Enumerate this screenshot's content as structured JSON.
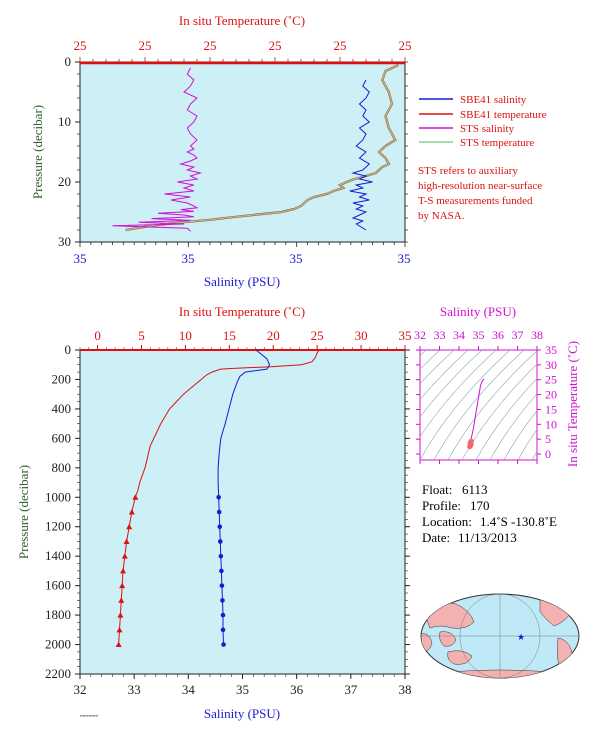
{
  "colors": {
    "plot_bg": "#cdeff6",
    "red": "#dd1111",
    "blue": "#1a1ad0",
    "magenta": "#d010d0",
    "green": "#8bd08b",
    "olive_green": "#2f5f2f",
    "dark": "#222222",
    "map_land": "#f3b1b1",
    "map_ocean": "#bfe9f7"
  },
  "chart_data": [
    {
      "id": "top",
      "type": "line",
      "top_axis_title": "In situ Temperature (˚C)",
      "top_tick_labels": [
        "25",
        "25",
        "25",
        "25",
        "25",
        "25"
      ],
      "bottom_axis_title": "Salinity (PSU)",
      "bottom_tick_labels": [
        "35",
        "35",
        "35",
        "35"
      ],
      "y_axis_title": "Pressure (decibar)",
      "y_ticks": [
        0,
        10,
        20,
        30
      ],
      "ylim": [
        0,
        30
      ],
      "legend": [
        {
          "name": "SBE41 salinity",
          "color": "#1a1ad0"
        },
        {
          "name": "SBE41 temperature",
          "color": "#dd1111"
        },
        {
          "name": "STS salinity",
          "color": "#d010d0"
        },
        {
          "name": "STS temperature",
          "color": "#8bd08b"
        }
      ],
      "note": [
        "STS refers to auxiliary",
        "high-resolution near-surface",
        "T-S measurements funded",
        "by NASA."
      ],
      "series": [
        {
          "key": "sts_salinity",
          "color": "#d010d0",
          "x_unit": "frac",
          "x": [
            0.34,
            0.33,
            0.35,
            0.34,
            0.32,
            0.36,
            0.34,
            0.33,
            0.36,
            0.35,
            0.33,
            0.34,
            0.36,
            0.34,
            0.35,
            0.33,
            0.35,
            0.36,
            0.34,
            0.31,
            0.35,
            0.33,
            0.37,
            0.34,
            0.36,
            0.3,
            0.35,
            0.32,
            0.35,
            0.26,
            0.34,
            0.28,
            0.33,
            0.35,
            0.36,
            0.31,
            0.35,
            0.24,
            0.32,
            0.35,
            0.22,
            0.34,
            0.18,
            0.32,
            0.1,
            0.33,
            0.34
          ],
          "y": [
            1,
            2,
            3,
            4,
            5,
            6,
            7,
            8,
            9,
            10,
            11,
            12,
            13,
            14,
            14.5,
            15,
            15.5,
            16,
            16.5,
            17,
            17.5,
            18,
            18.5,
            19,
            19.5,
            20,
            20.5,
            21,
            21.5,
            22,
            22.5,
            23,
            23.5,
            24,
            24.3,
            24.6,
            24.9,
            25.2,
            25.5,
            25.8,
            26.1,
            26.4,
            26.7,
            27,
            27.3,
            27.7,
            28.2
          ]
        },
        {
          "key": "sts_temperature",
          "color": "#8bd08b",
          "x_unit": "frac",
          "x": [
            0.98,
            0.94,
            0.93,
            0.95,
            0.96,
            0.94,
            0.95,
            0.97,
            0.94,
            0.92,
            0.94,
            0.95,
            0.93,
            0.92,
            0.91,
            0.88,
            0.86,
            0.84,
            0.82,
            0.8,
            0.81,
            0.78,
            0.76,
            0.72,
            0.7,
            0.69,
            0.68,
            0.66,
            0.62,
            0.55,
            0.48,
            0.4,
            0.3,
            0.22,
            0.14
          ],
          "y": [
            0.5,
            1.5,
            3,
            5,
            7,
            9,
            11,
            13,
            14,
            15,
            16,
            17,
            17.5,
            18,
            18.5,
            19,
            19.3,
            19.6,
            20,
            20.5,
            21,
            21.5,
            22,
            22.5,
            23,
            23.5,
            24,
            24.5,
            25,
            25.4,
            25.8,
            26.3,
            26.8,
            27.3,
            28
          ]
        },
        {
          "key": "sbe41_temperature_top",
          "color": "#dd1111",
          "x_unit": "frac",
          "x": [
            0.98,
            0.94,
            0.93,
            0.95,
            0.96,
            0.94,
            0.95,
            0.97,
            0.94,
            0.92,
            0.94,
            0.95,
            0.93,
            0.92,
            0.91,
            0.88,
            0.86,
            0.84,
            0.82,
            0.8,
            0.81,
            0.78,
            0.76,
            0.72,
            0.7,
            0.69,
            0.68,
            0.66,
            0.62,
            0.55,
            0.48,
            0.4,
            0.3,
            0.22,
            0.14
          ],
          "y": [
            0.5,
            1.5,
            3,
            5,
            7,
            9,
            11,
            13,
            14,
            15,
            16,
            17,
            17.5,
            18,
            18.5,
            19,
            19.3,
            19.6,
            20,
            20.5,
            21,
            21.5,
            22,
            22.5,
            23,
            23.5,
            24,
            24.5,
            25,
            25.4,
            25.8,
            26.3,
            26.8,
            27.3,
            28
          ]
        },
        {
          "key": "sbe41_salinity_top",
          "color": "#1a1ad0",
          "x_unit": "frac",
          "x": [
            0.88,
            0.87,
            0.89,
            0.88,
            0.86,
            0.88,
            0.87,
            0.89,
            0.86,
            0.88,
            0.87,
            0.85,
            0.88,
            0.86,
            0.89,
            0.87,
            0.84,
            0.88,
            0.86,
            0.9,
            0.85,
            0.87,
            0.83,
            0.88,
            0.86,
            0.89,
            0.84,
            0.87,
            0.85,
            0.88,
            0.86,
            0.84,
            0.87,
            0.85,
            0.88
          ],
          "y": [
            3,
            4,
            5,
            6,
            7,
            8,
            9,
            10,
            11,
            12,
            13,
            14,
            15,
            16,
            17,
            18,
            18.5,
            19,
            19.5,
            20,
            20.5,
            21,
            21.5,
            22,
            22.5,
            23,
            23.5,
            24,
            24.5,
            25,
            25.5,
            26,
            26.5,
            27,
            28
          ]
        }
      ]
    },
    {
      "id": "bottom",
      "type": "line",
      "top_axis_title": "In situ Temperature (˚C)",
      "top_ticks": [
        0,
        5,
        10,
        15,
        20,
        25,
        30,
        35
      ],
      "xlim_temperature": [
        -2,
        35
      ],
      "bottom_axis_title": "Salinity (PSU)",
      "bottom_ticks": [
        32,
        33,
        34,
        35,
        36,
        37,
        38
      ],
      "xlim_salinity": [
        32,
        38
      ],
      "y_axis_title": "Pressure (decibar)",
      "y_ticks": [
        0,
        200,
        400,
        600,
        800,
        1000,
        1200,
        1400,
        1600,
        1800,
        2000,
        2200
      ],
      "ylim": [
        0,
        2200
      ],
      "temperature": {
        "p": [
          0,
          20,
          50,
          80,
          100,
          115,
          120,
          125,
          130,
          150,
          170,
          200,
          250,
          300,
          350,
          400,
          450,
          500,
          550,
          600,
          650,
          700,
          750,
          800,
          850,
          900,
          950,
          1000,
          1100,
          1200,
          1300,
          1400,
          1500,
          1600,
          1700,
          1800,
          1900,
          2000
        ],
        "t": [
          25.2,
          25.0,
          24.8,
          24.4,
          23.2,
          19.5,
          17.0,
          15.5,
          14.0,
          13.0,
          12.4,
          11.8,
          10.8,
          9.8,
          9.0,
          8.2,
          7.7,
          7.2,
          6.8,
          6.4,
          6.0,
          5.8,
          5.6,
          5.4,
          5.1,
          4.8,
          4.6,
          4.3,
          3.9,
          3.6,
          3.3,
          3.1,
          2.9,
          2.8,
          2.7,
          2.6,
          2.5,
          2.4
        ]
      },
      "temperature_markers_from": 1000,
      "salinity": {
        "p": [
          0,
          30,
          60,
          100,
          130,
          150,
          180,
          220,
          300,
          400,
          500,
          600,
          700,
          800,
          900,
          1000,
          1100,
          1200,
          1300,
          1400,
          1500,
          1600,
          1700,
          1800,
          1900,
          2000
        ],
        "s": [
          35.25,
          35.35,
          35.45,
          35.5,
          35.45,
          35.05,
          34.95,
          34.9,
          34.82,
          34.75,
          34.68,
          34.6,
          34.57,
          34.55,
          34.55,
          34.56,
          34.57,
          34.58,
          34.59,
          34.6,
          34.61,
          34.62,
          34.63,
          34.64,
          34.64,
          34.65
        ]
      },
      "salinity_markers_from": 1000
    },
    {
      "id": "ts_diagram",
      "type": "scatter",
      "top_axis_title": "Salinity (PSU)",
      "x_ticks": [
        32,
        33,
        34,
        35,
        36,
        37,
        38
      ],
      "xlim": [
        32,
        38
      ],
      "right_axis_title": "In situ Temperature (˚C)",
      "y_ticks": [
        0,
        5,
        10,
        15,
        20,
        25,
        30,
        35
      ],
      "ylim": [
        -2,
        35
      ],
      "curve_s": [
        34.55,
        34.56,
        34.58,
        34.6,
        34.62,
        34.65,
        34.7,
        34.75,
        34.82,
        34.9,
        35.0,
        35.1,
        35.2,
        35.3
      ],
      "curve_t": [
        2.6,
        3.0,
        3.6,
        4.4,
        5.2,
        6.0,
        7.5,
        9.0,
        12.0,
        15.0,
        19.0,
        23.0,
        24.8,
        25.2
      ],
      "cluster_s": [
        34.55,
        34.58,
        34.6,
        34.62,
        34.57,
        34.6,
        34.63,
        34.56,
        34.59
      ],
      "cluster_t": [
        2.5,
        2.8,
        3.0,
        3.3,
        3.6,
        4.0,
        4.3,
        2.7,
        3.2
      ]
    }
  ],
  "info": {
    "float_label": "Float:",
    "float_value": "6113",
    "profile_label": "Profile:",
    "profile_value": "170",
    "location_label": "Location:",
    "location_value": "1.4˚S  -130.8˚E",
    "date_label": "Date:",
    "date_value": "11/13/2013"
  },
  "map": {
    "marker_lon": -130.8,
    "marker_lat": -1.4
  }
}
